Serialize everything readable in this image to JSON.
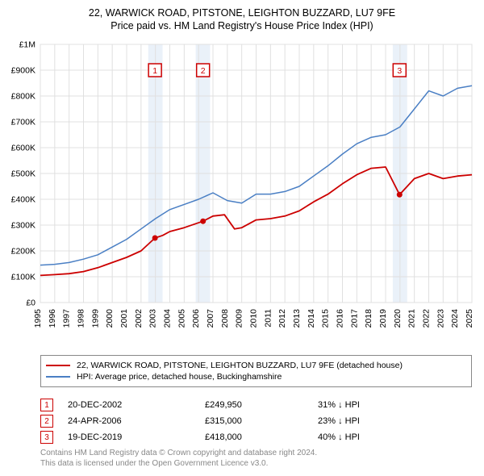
{
  "title_line1": "22, WARWICK ROAD, PITSTONE, LEIGHTON BUZZARD, LU7 9FE",
  "title_line2": "Price paid vs. HM Land Registry's House Price Index (HPI)",
  "chart": {
    "type": "line",
    "background_color": "#ffffff",
    "grid_color": "#e0e0e0",
    "axis_color": "#000000",
    "x": {
      "min": 1995,
      "max": 2025,
      "ticks": [
        1995,
        1996,
        1997,
        1998,
        1999,
        2000,
        2001,
        2002,
        2003,
        2004,
        2005,
        2006,
        2007,
        2008,
        2009,
        2010,
        2011,
        2012,
        2013,
        2014,
        2015,
        2016,
        2017,
        2018,
        2019,
        2020,
        2021,
        2022,
        2023,
        2024,
        2025
      ],
      "label_fontsize": 10.5
    },
    "y": {
      "min": 0,
      "max": 1000000,
      "ticks": [
        0,
        100000,
        200000,
        300000,
        400000,
        500000,
        600000,
        700000,
        800000,
        900000,
        1000000
      ],
      "tick_labels": [
        "£0",
        "£100K",
        "£200K",
        "£300K",
        "£400K",
        "£500K",
        "£600K",
        "£700K",
        "£800K",
        "£900K",
        "£1M"
      ],
      "label_fontsize": 10.5
    },
    "shaded_regions": [
      {
        "x_start": 2002.5,
        "x_end": 2003.5,
        "color": "#eaf1f9"
      },
      {
        "x_start": 2005.8,
        "x_end": 2006.8,
        "color": "#eaf1f9"
      },
      {
        "x_start": 2019.5,
        "x_end": 2020.5,
        "color": "#eaf1f9"
      }
    ],
    "series": [
      {
        "name": "property",
        "label": "22, WARWICK ROAD, PITSTONE, LEIGHTON BUZZARD, LU7 9FE (detached house)",
        "color": "#cc0000",
        "line_width": 1.8,
        "data": [
          [
            1995,
            105000
          ],
          [
            1996,
            108000
          ],
          [
            1997,
            112000
          ],
          [
            1998,
            120000
          ],
          [
            1999,
            135000
          ],
          [
            2000,
            155000
          ],
          [
            2001,
            175000
          ],
          [
            2002,
            200000
          ],
          [
            2002.97,
            249950
          ],
          [
            2003.5,
            260000
          ],
          [
            2004,
            275000
          ],
          [
            2005,
            290000
          ],
          [
            2006.31,
            315000
          ],
          [
            2007,
            335000
          ],
          [
            2007.8,
            340000
          ],
          [
            2008.5,
            285000
          ],
          [
            2009,
            290000
          ],
          [
            2010,
            320000
          ],
          [
            2011,
            325000
          ],
          [
            2012,
            335000
          ],
          [
            2013,
            355000
          ],
          [
            2014,
            390000
          ],
          [
            2015,
            420000
          ],
          [
            2016,
            460000
          ],
          [
            2017,
            495000
          ],
          [
            2018,
            520000
          ],
          [
            2019,
            525000
          ],
          [
            2019.97,
            418000
          ],
          [
            2020.5,
            450000
          ],
          [
            2021,
            480000
          ],
          [
            2022,
            500000
          ],
          [
            2023,
            480000
          ],
          [
            2024,
            490000
          ],
          [
            2025,
            495000
          ]
        ]
      },
      {
        "name": "hpi",
        "label": "HPI: Average price, detached house, Buckinghamshire",
        "color": "#4a7fc4",
        "line_width": 1.5,
        "data": [
          [
            1995,
            145000
          ],
          [
            1996,
            148000
          ],
          [
            1997,
            155000
          ],
          [
            1998,
            168000
          ],
          [
            1999,
            185000
          ],
          [
            2000,
            215000
          ],
          [
            2001,
            245000
          ],
          [
            2002,
            285000
          ],
          [
            2003,
            325000
          ],
          [
            2004,
            360000
          ],
          [
            2005,
            380000
          ],
          [
            2006,
            400000
          ],
          [
            2007,
            425000
          ],
          [
            2008,
            395000
          ],
          [
            2009,
            385000
          ],
          [
            2010,
            420000
          ],
          [
            2011,
            420000
          ],
          [
            2012,
            430000
          ],
          [
            2013,
            450000
          ],
          [
            2014,
            490000
          ],
          [
            2015,
            530000
          ],
          [
            2016,
            575000
          ],
          [
            2017,
            615000
          ],
          [
            2018,
            640000
          ],
          [
            2019,
            650000
          ],
          [
            2020,
            680000
          ],
          [
            2021,
            750000
          ],
          [
            2022,
            820000
          ],
          [
            2023,
            800000
          ],
          [
            2024,
            830000
          ],
          [
            2025,
            840000
          ]
        ]
      }
    ],
    "markers": [
      {
        "id": "1",
        "x": 2002.97,
        "y": 249950,
        "label_y": 900000,
        "color": "#cc0000"
      },
      {
        "id": "2",
        "x": 2006.31,
        "y": 315000,
        "label_y": 900000,
        "color": "#cc0000"
      },
      {
        "id": "3",
        "x": 2019.97,
        "y": 418000,
        "label_y": 900000,
        "color": "#cc0000"
      }
    ]
  },
  "legend": {
    "items": [
      {
        "color": "#cc0000",
        "label": "22, WARWICK ROAD, PITSTONE, LEIGHTON BUZZARD, LU7 9FE (detached house)"
      },
      {
        "color": "#4a7fc4",
        "label": "HPI: Average price, detached house, Buckinghamshire"
      }
    ]
  },
  "footnotes": [
    {
      "id": "1",
      "color": "#cc0000",
      "date": "20-DEC-2002",
      "price": "£249,950",
      "pct": "31% ↓ HPI"
    },
    {
      "id": "2",
      "color": "#cc0000",
      "date": "24-APR-2006",
      "price": "£315,000",
      "pct": "23% ↓ HPI"
    },
    {
      "id": "3",
      "color": "#cc0000",
      "date": "19-DEC-2019",
      "price": "£418,000",
      "pct": "40% ↓ HPI"
    }
  ],
  "attribution_line1": "Contains HM Land Registry data © Crown copyright and database right 2024.",
  "attribution_line2": "This data is licensed under the Open Government Licence v3.0."
}
